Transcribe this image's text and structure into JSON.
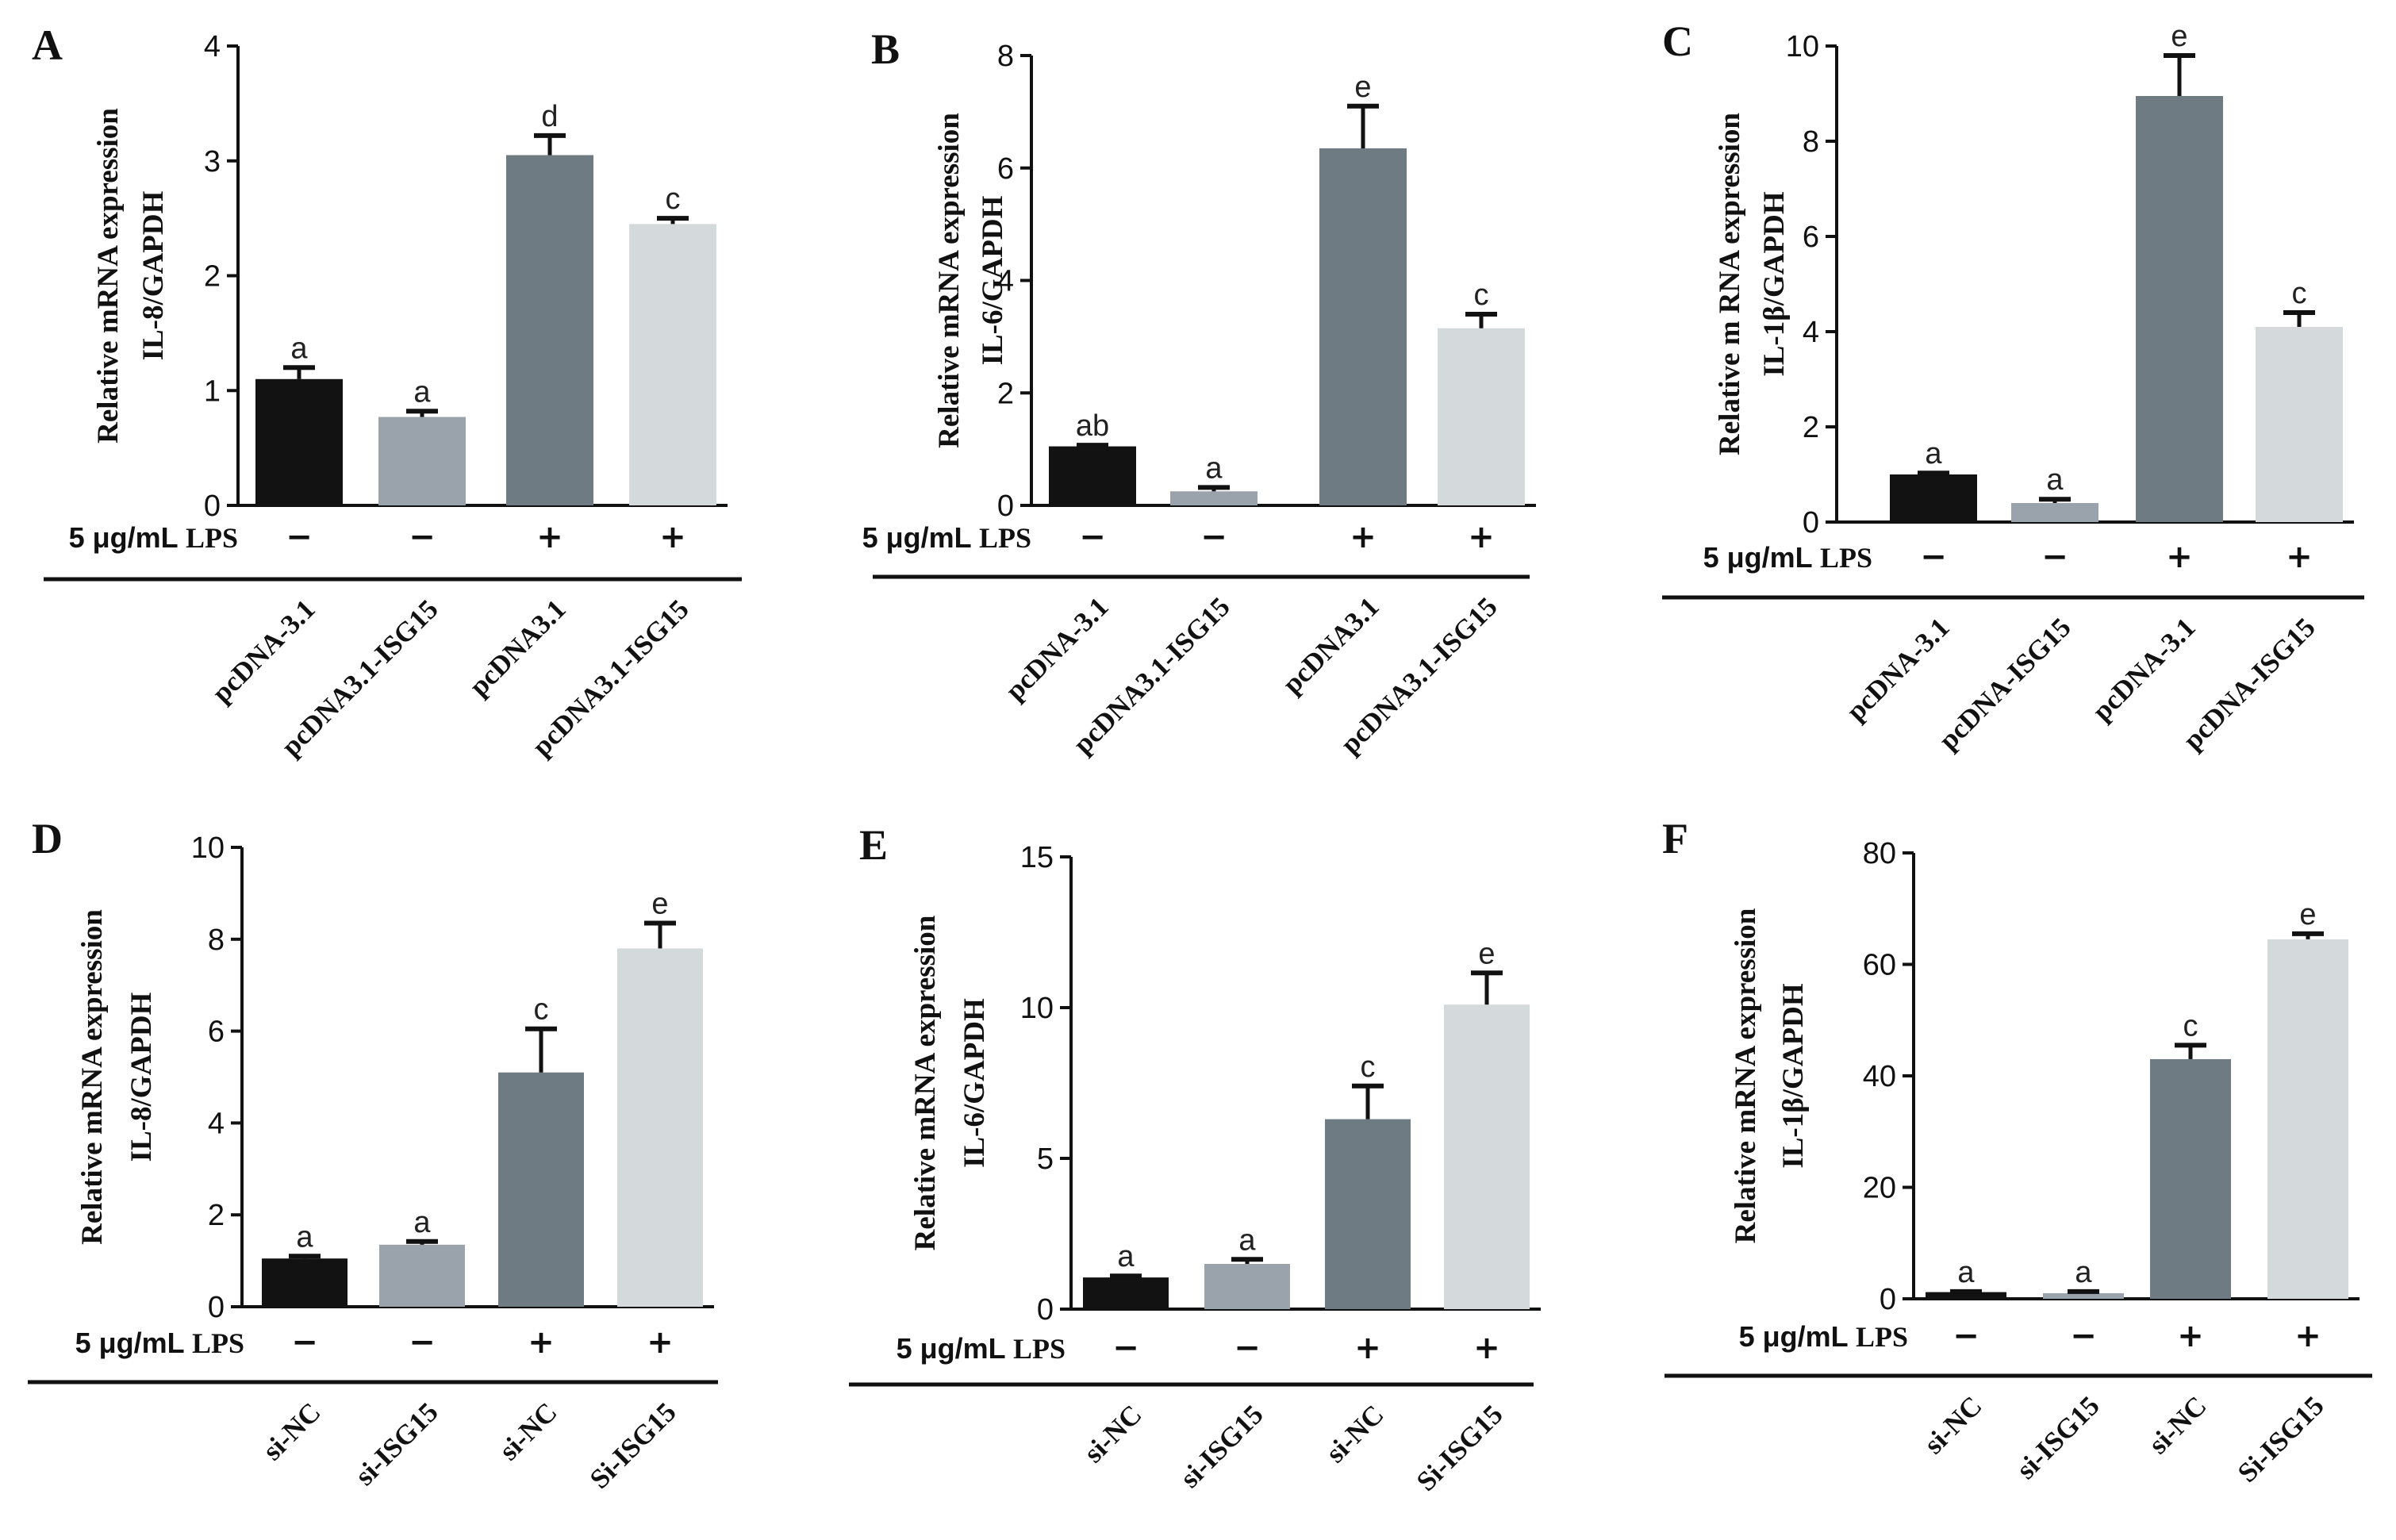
{
  "chart_data": [
    {
      "panel": "A",
      "type": "bar",
      "ylabel_lines": [
        "Relative mRNA expression",
        "IL-8/GAPDH"
      ],
      "ylim": [
        0,
        4
      ],
      "yticks": [
        0,
        1,
        2,
        3,
        4
      ],
      "categories": [
        "pcDNA-3.1",
        "pcDNA3.1-ISG15",
        "pcDNA3.1",
        "pcDNA3.1-ISG15"
      ],
      "values": [
        1.1,
        0.77,
        3.05,
        2.45
      ],
      "errors": [
        0.1,
        0.05,
        0.17,
        0.05
      ],
      "letters": [
        "a",
        "a",
        "d",
        "c"
      ],
      "lps_prefix": "5 μg/mL",
      "lps_word": "LPS",
      "lps_signs": [
        "−",
        "−",
        "+",
        "+"
      ],
      "colors": [
        "#121212",
        "#9aa3ab",
        "#6f7b82",
        "#d4d9dc"
      ]
    },
    {
      "panel": "B",
      "type": "bar",
      "ylabel_lines": [
        "Relative mRNA expression",
        "IL-6/GAPDH"
      ],
      "ylim": [
        0,
        8
      ],
      "yticks": [
        0,
        2,
        4,
        6,
        8
      ],
      "categories": [
        "pcDNA-3.1",
        "pcDNA3.1-ISG15",
        "pcDNA3.1",
        "pcDNA3.1-ISG15"
      ],
      "values": [
        1.05,
        0.25,
        6.35,
        3.15
      ],
      "errors": [
        0.02,
        0.07,
        0.75,
        0.25
      ],
      "letters": [
        "ab",
        "a",
        "e",
        "c"
      ],
      "lps_prefix": "5 μg/mL",
      "lps_word": "LPS",
      "lps_signs": [
        "−",
        "−",
        "+",
        "+"
      ],
      "colors": [
        "#121212",
        "#9aa3ab",
        "#6f7b82",
        "#d4d9dc"
      ]
    },
    {
      "panel": "C",
      "type": "bar",
      "ylabel_lines": [
        "Relative m RNA expression",
        "IL-1β/GAPDH"
      ],
      "ylim": [
        0,
        10
      ],
      "yticks": [
        0,
        2,
        4,
        6,
        8,
        10
      ],
      "categories": [
        "pcDNA-3.1",
        "pcDNA-ISG15",
        "pcDNA-3.1",
        "pcDNA-ISG15"
      ],
      "values": [
        1.0,
        0.4,
        8.95,
        4.1
      ],
      "errors": [
        0.03,
        0.08,
        0.85,
        0.3
      ],
      "letters": [
        "a",
        "a",
        "e",
        "c"
      ],
      "lps_prefix": "5 μg/mL",
      "lps_word": "LPS",
      "lps_signs": [
        "−",
        "−",
        "+",
        "+"
      ],
      "colors": [
        "#121212",
        "#9aa3ab",
        "#6f7b82",
        "#d4d9dc"
      ]
    },
    {
      "panel": "D",
      "type": "bar",
      "ylabel_lines": [
        "Relative mRNA expression",
        "IL-8/GAPDH"
      ],
      "ylim": [
        0,
        10
      ],
      "yticks": [
        0,
        2,
        4,
        6,
        8,
        10
      ],
      "categories": [
        "si-NC",
        "si-ISG15",
        "si-NC",
        "Si-ISG15"
      ],
      "values": [
        1.05,
        1.35,
        5.1,
        7.8
      ],
      "errors": [
        0.05,
        0.07,
        0.95,
        0.55
      ],
      "letters": [
        "a",
        "a",
        "c",
        "e"
      ],
      "lps_prefix": "5 μg/mL",
      "lps_word": "LPS",
      "lps_signs": [
        "−",
        "−",
        "+",
        "+"
      ],
      "colors": [
        "#121212",
        "#9aa3ab",
        "#6f7b82",
        "#d4d9dc"
      ]
    },
    {
      "panel": "E",
      "type": "bar",
      "ylabel_lines": [
        "Relative mRNA expression",
        "IL-6/GAPDH"
      ],
      "ylim": [
        0,
        15
      ],
      "yticks": [
        0,
        5,
        10,
        15
      ],
      "categories": [
        "si-NC",
        "si-ISG15",
        "si-NC",
        "Si-ISG15"
      ],
      "values": [
        1.05,
        1.5,
        6.3,
        10.1
      ],
      "errors": [
        0.05,
        0.15,
        1.1,
        1.05
      ],
      "letters": [
        "a",
        "a",
        "c",
        "e"
      ],
      "lps_prefix": "5 μg/mL",
      "lps_word": "LPS",
      "lps_signs": [
        "−",
        "−",
        "+",
        "+"
      ],
      "colors": [
        "#121212",
        "#9aa3ab",
        "#6f7b82",
        "#d4d9dc"
      ]
    },
    {
      "panel": "F",
      "type": "bar",
      "ylabel_lines": [
        "Relative mRNA expression",
        "IL-1β/GAPDH"
      ],
      "ylim": [
        0,
        80
      ],
      "yticks": [
        0,
        20,
        40,
        60,
        80
      ],
      "categories": [
        "si-NC",
        "si-ISG15",
        "si-NC",
        "Si-ISG15"
      ],
      "values": [
        1.2,
        1.0,
        43.0,
        64.5
      ],
      "errors": [
        0.1,
        0.3,
        2.5,
        1.0
      ],
      "letters": [
        "a",
        "a",
        "c",
        "e"
      ],
      "lps_prefix": "5 μg/mL",
      "lps_word": "LPS",
      "lps_signs": [
        "−",
        "−",
        "+",
        "+"
      ],
      "colors": [
        "#121212",
        "#9aa3ab",
        "#6f7b82",
        "#d4d9dc"
      ]
    }
  ]
}
